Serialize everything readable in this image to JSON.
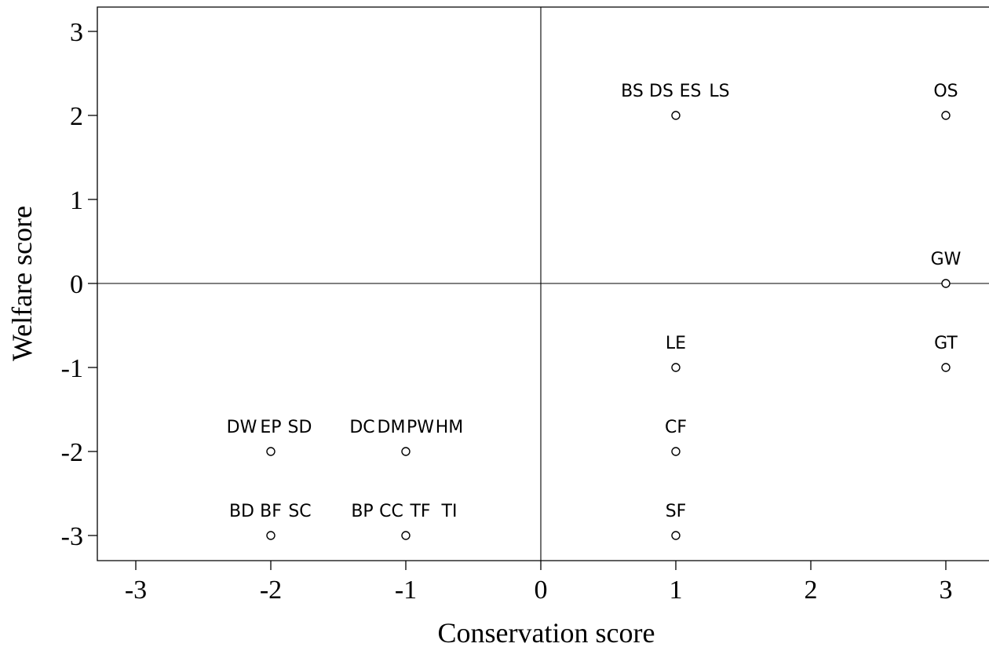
{
  "chart_data": {
    "type": "scatter",
    "xlabel": "Conservation score",
    "ylabel": "Welfare score",
    "xlim": [
      -3.3,
      3.3
    ],
    "ylim": [
      -3.3,
      3.3
    ],
    "xticks": [
      -3,
      -2,
      -1,
      0,
      1,
      2,
      3
    ],
    "yticks": [
      -3,
      -2,
      -1,
      0,
      1,
      2,
      3
    ],
    "reference_lines": {
      "x": 0,
      "y": 0
    },
    "points": [
      {
        "x": 1,
        "y": 2,
        "labels": [
          "BS",
          "DS",
          "ES",
          "LS"
        ]
      },
      {
        "x": 3,
        "y": 2,
        "labels": [
          "OS"
        ]
      },
      {
        "x": 3,
        "y": 0,
        "labels": [
          "GW"
        ]
      },
      {
        "x": 1,
        "y": -1,
        "labels": [
          "LE"
        ]
      },
      {
        "x": 3,
        "y": -1,
        "labels": [
          "GT"
        ]
      },
      {
        "x": -2,
        "y": -2,
        "labels": [
          "DW",
          "EP",
          "SD"
        ]
      },
      {
        "x": -1,
        "y": -2,
        "labels": [
          "DC",
          "DM",
          "PW",
          "HM"
        ]
      },
      {
        "x": 1,
        "y": -2,
        "labels": [
          "CF"
        ]
      },
      {
        "x": -2,
        "y": -3,
        "labels": [
          "BD",
          "BF",
          "SC"
        ]
      },
      {
        "x": -1,
        "y": -3,
        "labels": [
          "BP",
          "CC",
          "TF",
          "TI"
        ]
      },
      {
        "x": 1,
        "y": -3,
        "labels": [
          "SF"
        ]
      }
    ]
  }
}
